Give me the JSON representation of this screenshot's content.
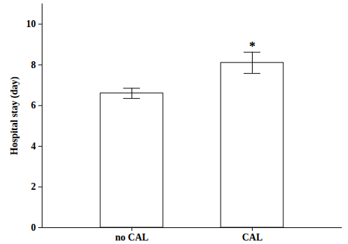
{
  "chart_data": {
    "type": "bar",
    "y_label": "Hospital stay (day)",
    "categories": [
      "no CAL",
      "CAL"
    ],
    "values": [
      6.6,
      8.1
    ],
    "errors": [
      0.25,
      0.52
    ],
    "color": "#ffffff",
    "ylim": [
      0,
      11
    ],
    "yticks": [
      0,
      2,
      4,
      6,
      8,
      10
    ],
    "annotations": [
      {
        "category": "CAL",
        "text": "*"
      }
    ]
  }
}
